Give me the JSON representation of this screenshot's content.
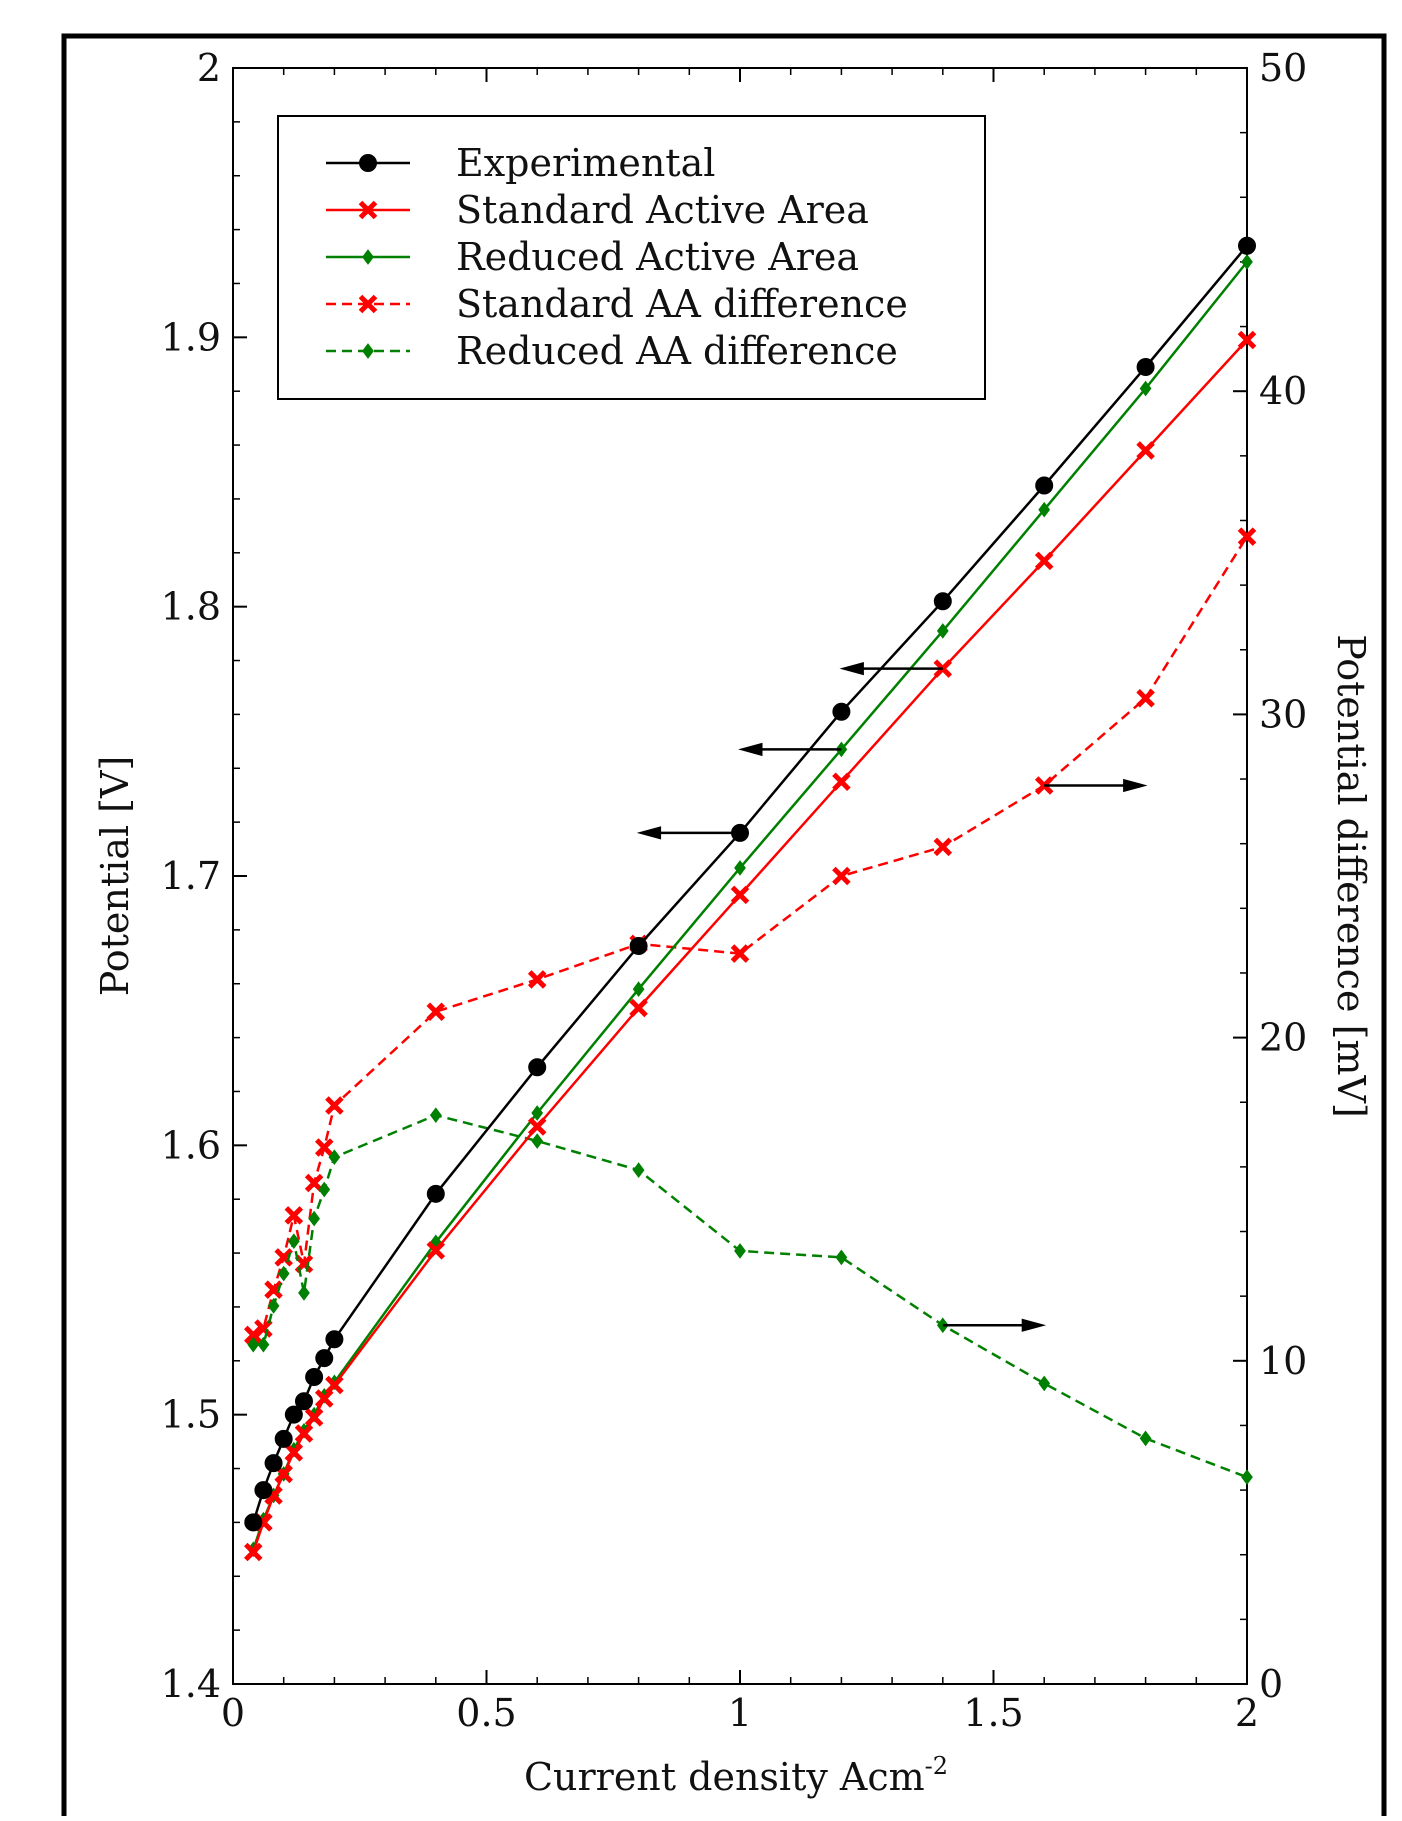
{
  "chart_data": {
    "type": "line",
    "xlabel": "Current density Acm",
    "xlabel_sup": "-2",
    "ylabel": "Potential [V]",
    "ylabel_right": "Potential difference [mV]",
    "xlim": [
      0,
      2
    ],
    "ylim": [
      1.4,
      2.0
    ],
    "ylim_right": [
      0,
      50
    ],
    "x_ticks": [
      "0",
      "0.5",
      "1",
      "1.5",
      "2"
    ],
    "y_ticks": [
      "1.4",
      "1.5",
      "1.6",
      "1.7",
      "1.8",
      "1.9",
      "2"
    ],
    "y_ticks_right": [
      "0",
      "10",
      "20",
      "30",
      "40",
      "50"
    ],
    "grid": false,
    "legend_position": "top-left",
    "series": [
      {
        "name": "Experimental",
        "axis": "left",
        "color": "#000000",
        "style": "solid",
        "marker": "circle",
        "x": [
          0.04,
          0.06,
          0.08,
          0.1,
          0.12,
          0.14,
          0.16,
          0.18,
          0.2,
          0.4,
          0.6,
          0.8,
          1.0,
          1.2,
          1.4,
          1.6,
          1.8,
          2.0
        ],
        "y": [
          1.46,
          1.472,
          1.482,
          1.491,
          1.5,
          1.505,
          1.514,
          1.521,
          1.528,
          1.582,
          1.629,
          1.674,
          1.716,
          1.761,
          1.802,
          1.845,
          1.889,
          1.934
        ]
      },
      {
        "name": "Standard Active Area",
        "axis": "left",
        "color": "#ff0000",
        "style": "solid",
        "marker": "x",
        "x": [
          0.04,
          0.06,
          0.08,
          0.1,
          0.12,
          0.14,
          0.16,
          0.18,
          0.2,
          0.4,
          0.6,
          0.8,
          1.0,
          1.2,
          1.4,
          1.6,
          1.8,
          2.0
        ],
        "y": [
          1.449,
          1.46,
          1.47,
          1.478,
          1.486,
          1.493,
          1.499,
          1.506,
          1.511,
          1.561,
          1.607,
          1.651,
          1.693,
          1.735,
          1.777,
          1.817,
          1.858,
          1.899
        ]
      },
      {
        "name": "Reduced Active Area",
        "axis": "left",
        "color": "#008000",
        "style": "solid",
        "marker": "diamond",
        "x": [
          0.04,
          0.06,
          0.08,
          0.1,
          0.12,
          0.14,
          0.16,
          0.18,
          0.2,
          0.4,
          0.6,
          0.8,
          1.0,
          1.2,
          1.4,
          1.6,
          1.8,
          2.0
        ],
        "y": [
          1.45,
          1.461,
          1.47,
          1.478,
          1.487,
          1.494,
          1.5,
          1.507,
          1.512,
          1.564,
          1.612,
          1.658,
          1.703,
          1.747,
          1.791,
          1.836,
          1.881,
          1.928
        ]
      },
      {
        "name": "Standard AA difference",
        "axis": "right",
        "color": "#ff0000",
        "style": "dashed",
        "marker": "x",
        "x": [
          0.04,
          0.06,
          0.08,
          0.1,
          0.12,
          0.14,
          0.16,
          0.18,
          0.2,
          0.4,
          0.6,
          0.8,
          1.0,
          1.2,
          1.4,
          1.6,
          1.8,
          2.0
        ],
        "y": [
          10.8,
          11.0,
          12.2,
          13.2,
          14.5,
          13.0,
          15.5,
          16.6,
          17.9,
          20.8,
          21.8,
          22.9,
          22.6,
          25.0,
          25.9,
          27.8,
          30.5,
          35.5
        ]
      },
      {
        "name": "Reduced AA difference",
        "axis": "right",
        "color": "#008000",
        "style": "dashed",
        "marker": "diamond",
        "x": [
          0.04,
          0.06,
          0.08,
          0.1,
          0.12,
          0.14,
          0.16,
          0.18,
          0.2,
          0.4,
          0.6,
          0.8,
          1.0,
          1.2,
          1.4,
          1.6,
          1.8,
          2.0
        ],
        "y": [
          10.5,
          10.5,
          11.7,
          12.7,
          13.7,
          12.1,
          14.4,
          15.3,
          16.3,
          17.6,
          16.8,
          15.9,
          13.4,
          13.2,
          11.1,
          9.3,
          7.6,
          6.4
        ]
      }
    ],
    "annotations": [
      {
        "type": "arrow",
        "direction": "left",
        "axis": "left",
        "x_from": 1.4,
        "x_to": 1.2,
        "y": 1.777
      },
      {
        "type": "arrow",
        "direction": "left",
        "axis": "left",
        "x_from": 1.2,
        "x_to": 1.0,
        "y": 1.747
      },
      {
        "type": "arrow",
        "direction": "left",
        "axis": "left",
        "x_from": 1.0,
        "x_to": 0.8,
        "y": 1.716
      },
      {
        "type": "arrow",
        "direction": "right",
        "axis": "right",
        "x_from": 1.6,
        "x_to": 1.8,
        "y": 27.8
      },
      {
        "type": "arrow",
        "direction": "right",
        "axis": "right",
        "x_from": 1.4,
        "x_to": 1.6,
        "y": 11.1
      }
    ]
  }
}
